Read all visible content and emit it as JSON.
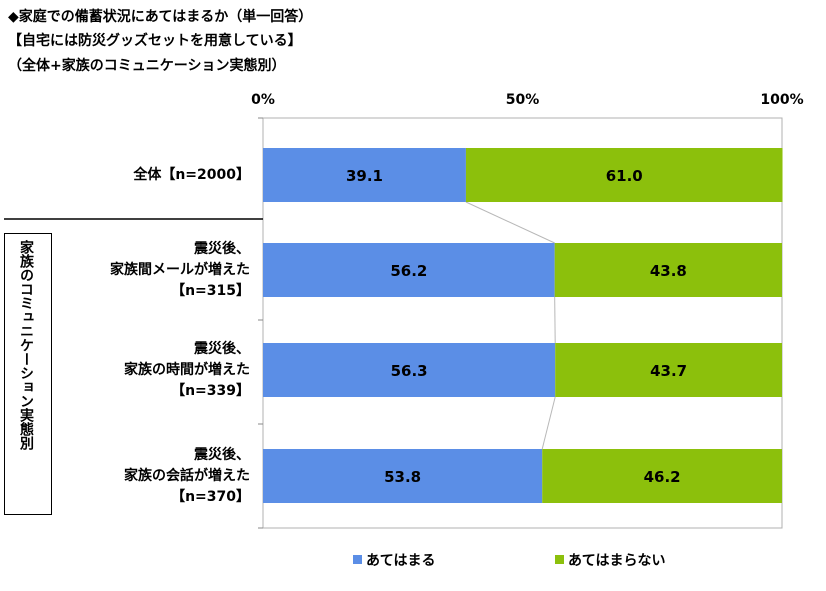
{
  "titles": {
    "line1": "◆家庭での備蓄状況にあてはまるか（単一回答）",
    "line2": "【自宅には防災グッズセットを用意している】",
    "line3": "（全体+家族のコミュニケーション実態別）"
  },
  "group_label": "家族のコミュニケーション実態別",
  "colors": {
    "yes": "#5b8ee6",
    "no": "#8cc00c"
  },
  "chart_data": {
    "type": "bar",
    "orientation": "horizontal",
    "stacked": true,
    "percent": true,
    "xlim": [
      0,
      100
    ],
    "x_ticks": [
      "0%",
      "50%",
      "100%"
    ],
    "categories": [
      [
        "全体【n=2000】"
      ],
      [
        "震災後、",
        "家族間メールが増えた",
        "【n=315】"
      ],
      [
        "震災後、",
        "家族の時間が増えた",
        "【n=339】"
      ],
      [
        "震災後、",
        "家族の会話が増えた",
        "【n=370】"
      ]
    ],
    "series": [
      {
        "name": "あてはまる",
        "values": [
          39.1,
          56.2,
          56.3,
          53.8
        ],
        "labels": [
          "39.1",
          "56.2",
          "56.3",
          "53.8"
        ]
      },
      {
        "name": "あてはまらない",
        "values": [
          61.0,
          43.8,
          43.7,
          46.2
        ],
        "labels": [
          "61.0",
          "43.8",
          "43.7",
          "46.2"
        ]
      }
    ],
    "legend": "bottom",
    "grid": false
  }
}
